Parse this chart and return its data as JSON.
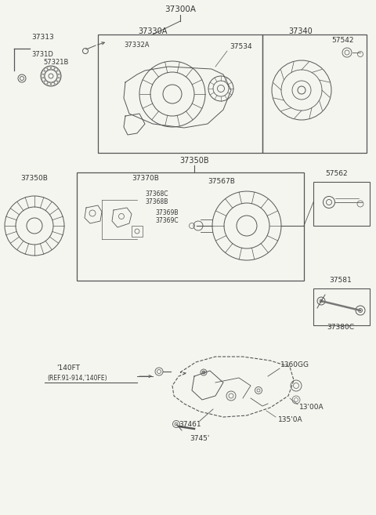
{
  "bg_color": "#f5f5f0",
  "line_color": "#555555",
  "text_color": "#333333",
  "fig_width": 4.8,
  "fig_height": 6.57,
  "dpi": 100,
  "labels": {
    "top": "37300A",
    "box1_label": "37330A",
    "box2_label": "37340",
    "mid_label": "37350B",
    "part_37313": "37313",
    "part_3731D": "3731D",
    "part_57321B": "57321B",
    "part_37332A": "37332A",
    "part_37534": "37534",
    "part_57542": "57542",
    "part_37350B": "37350B",
    "part_37370B": "37370B",
    "part_37368C": "37368C",
    "part_37368B": "37368B",
    "part_37369B": "37369B",
    "part_37369C": "37369C",
    "part_37567B": "37567B",
    "part_57562": "57562",
    "part_37581": "37581",
    "part_37380C": "37380C",
    "part_140FT": "'140FT",
    "part_ref": "(REF.91-914,'140FE)",
    "part_37461": "37461",
    "part_1360GG": "1360GG",
    "part_1300A": "13'00A",
    "part_13500A": "135'0A",
    "part_37451": "3745'"
  }
}
